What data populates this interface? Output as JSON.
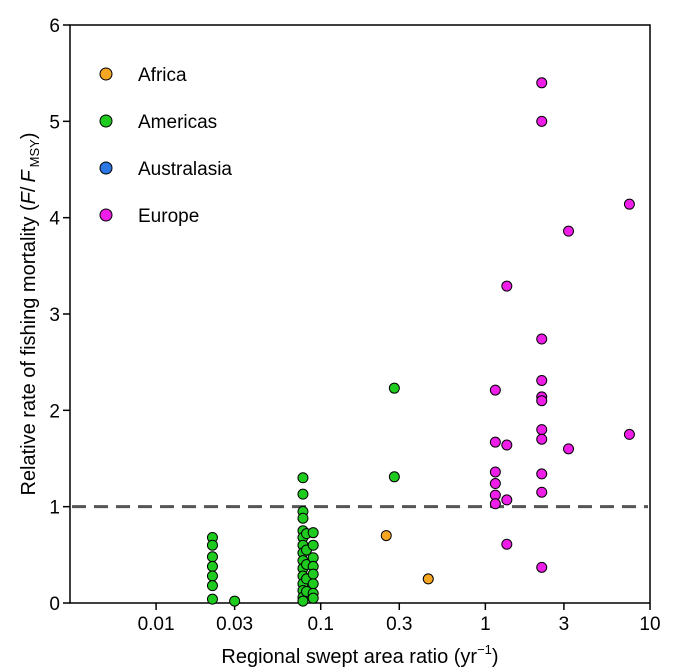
{
  "chart_data": {
    "type": "scatter",
    "x_scale": "log",
    "xlim": [
      0.003,
      10
    ],
    "ylim": [
      0,
      6
    ],
    "xticks": [
      {
        "value": 0.01,
        "label": "0.01"
      },
      {
        "value": 0.03,
        "label": "0.03"
      },
      {
        "value": 0.1,
        "label": "0.1"
      },
      {
        "value": 0.3,
        "label": "0.3"
      },
      {
        "value": 1,
        "label": "1"
      },
      {
        "value": 3,
        "label": "3"
      },
      {
        "value": 10,
        "label": "10"
      }
    ],
    "yticks": [
      {
        "value": 0,
        "label": "0"
      },
      {
        "value": 1,
        "label": "1"
      },
      {
        "value": 2,
        "label": "2"
      },
      {
        "value": 3,
        "label": "3"
      },
      {
        "value": 4,
        "label": "4"
      },
      {
        "value": 5,
        "label": "5"
      },
      {
        "value": 6,
        "label": "6"
      }
    ],
    "xlabel": {
      "main": "Regional swept area ratio (yr",
      "sup": "−1",
      "close": ")"
    },
    "ylabel": {
      "main": "Relative rate of fishing mortality (",
      "f1": "F",
      "slash": "/",
      "f2": "F",
      "sub": "MSY",
      "close": ")"
    },
    "reference_line": {
      "y": 1,
      "style": "dashed",
      "color": "#555555"
    },
    "grid": false,
    "legend_position": "top-left",
    "series": [
      {
        "name": "Africa",
        "color": "#f5a623",
        "points": [
          [
            0.25,
            0.7
          ],
          [
            0.45,
            0.25
          ]
        ]
      },
      {
        "name": "Americas",
        "color": "#1ecb1e",
        "points": [
          [
            0.022,
            0.68
          ],
          [
            0.022,
            0.6
          ],
          [
            0.022,
            0.48
          ],
          [
            0.022,
            0.38
          ],
          [
            0.022,
            0.28
          ],
          [
            0.022,
            0.18
          ],
          [
            0.022,
            0.04
          ],
          [
            0.03,
            0.02
          ],
          [
            0.078,
            1.3
          ],
          [
            0.078,
            1.13
          ],
          [
            0.078,
            0.95
          ],
          [
            0.078,
            0.88
          ],
          [
            0.078,
            0.75
          ],
          [
            0.078,
            0.68
          ],
          [
            0.078,
            0.6
          ],
          [
            0.078,
            0.52
          ],
          [
            0.078,
            0.44
          ],
          [
            0.078,
            0.36
          ],
          [
            0.078,
            0.28
          ],
          [
            0.078,
            0.2
          ],
          [
            0.078,
            0.13
          ],
          [
            0.078,
            0.06
          ],
          [
            0.078,
            0.02
          ],
          [
            0.082,
            0.72
          ],
          [
            0.082,
            0.55
          ],
          [
            0.082,
            0.4
          ],
          [
            0.082,
            0.25
          ],
          [
            0.082,
            0.12
          ],
          [
            0.09,
            0.73
          ],
          [
            0.09,
            0.6
          ],
          [
            0.09,
            0.47
          ],
          [
            0.09,
            0.38
          ],
          [
            0.09,
            0.3
          ],
          [
            0.09,
            0.2
          ],
          [
            0.09,
            0.1
          ],
          [
            0.09,
            0.05
          ],
          [
            0.28,
            2.23
          ],
          [
            0.28,
            1.31
          ]
        ]
      },
      {
        "name": "Australasia",
        "color": "#2b78e4",
        "points": []
      },
      {
        "name": "Europe",
        "color": "#ee1ee8",
        "points": [
          [
            2.2,
            5.4
          ],
          [
            2.2,
            5.0
          ],
          [
            2.2,
            2.74
          ],
          [
            2.2,
            2.31
          ],
          [
            2.2,
            2.14
          ],
          [
            2.2,
            2.1
          ],
          [
            2.2,
            1.8
          ],
          [
            2.2,
            1.7
          ],
          [
            2.2,
            1.34
          ],
          [
            2.2,
            1.15
          ],
          [
            2.2,
            0.37
          ],
          [
            7.5,
            4.14
          ],
          [
            7.5,
            1.75
          ],
          [
            3.2,
            3.86
          ],
          [
            3.2,
            1.6
          ],
          [
            1.35,
            3.29
          ],
          [
            1.35,
            1.64
          ],
          [
            1.35,
            1.07
          ],
          [
            1.35,
            0.61
          ],
          [
            1.15,
            2.21
          ],
          [
            1.15,
            1.67
          ],
          [
            1.15,
            1.36
          ],
          [
            1.15,
            1.24
          ],
          [
            1.15,
            1.12
          ],
          [
            1.15,
            1.03
          ]
        ]
      }
    ]
  }
}
